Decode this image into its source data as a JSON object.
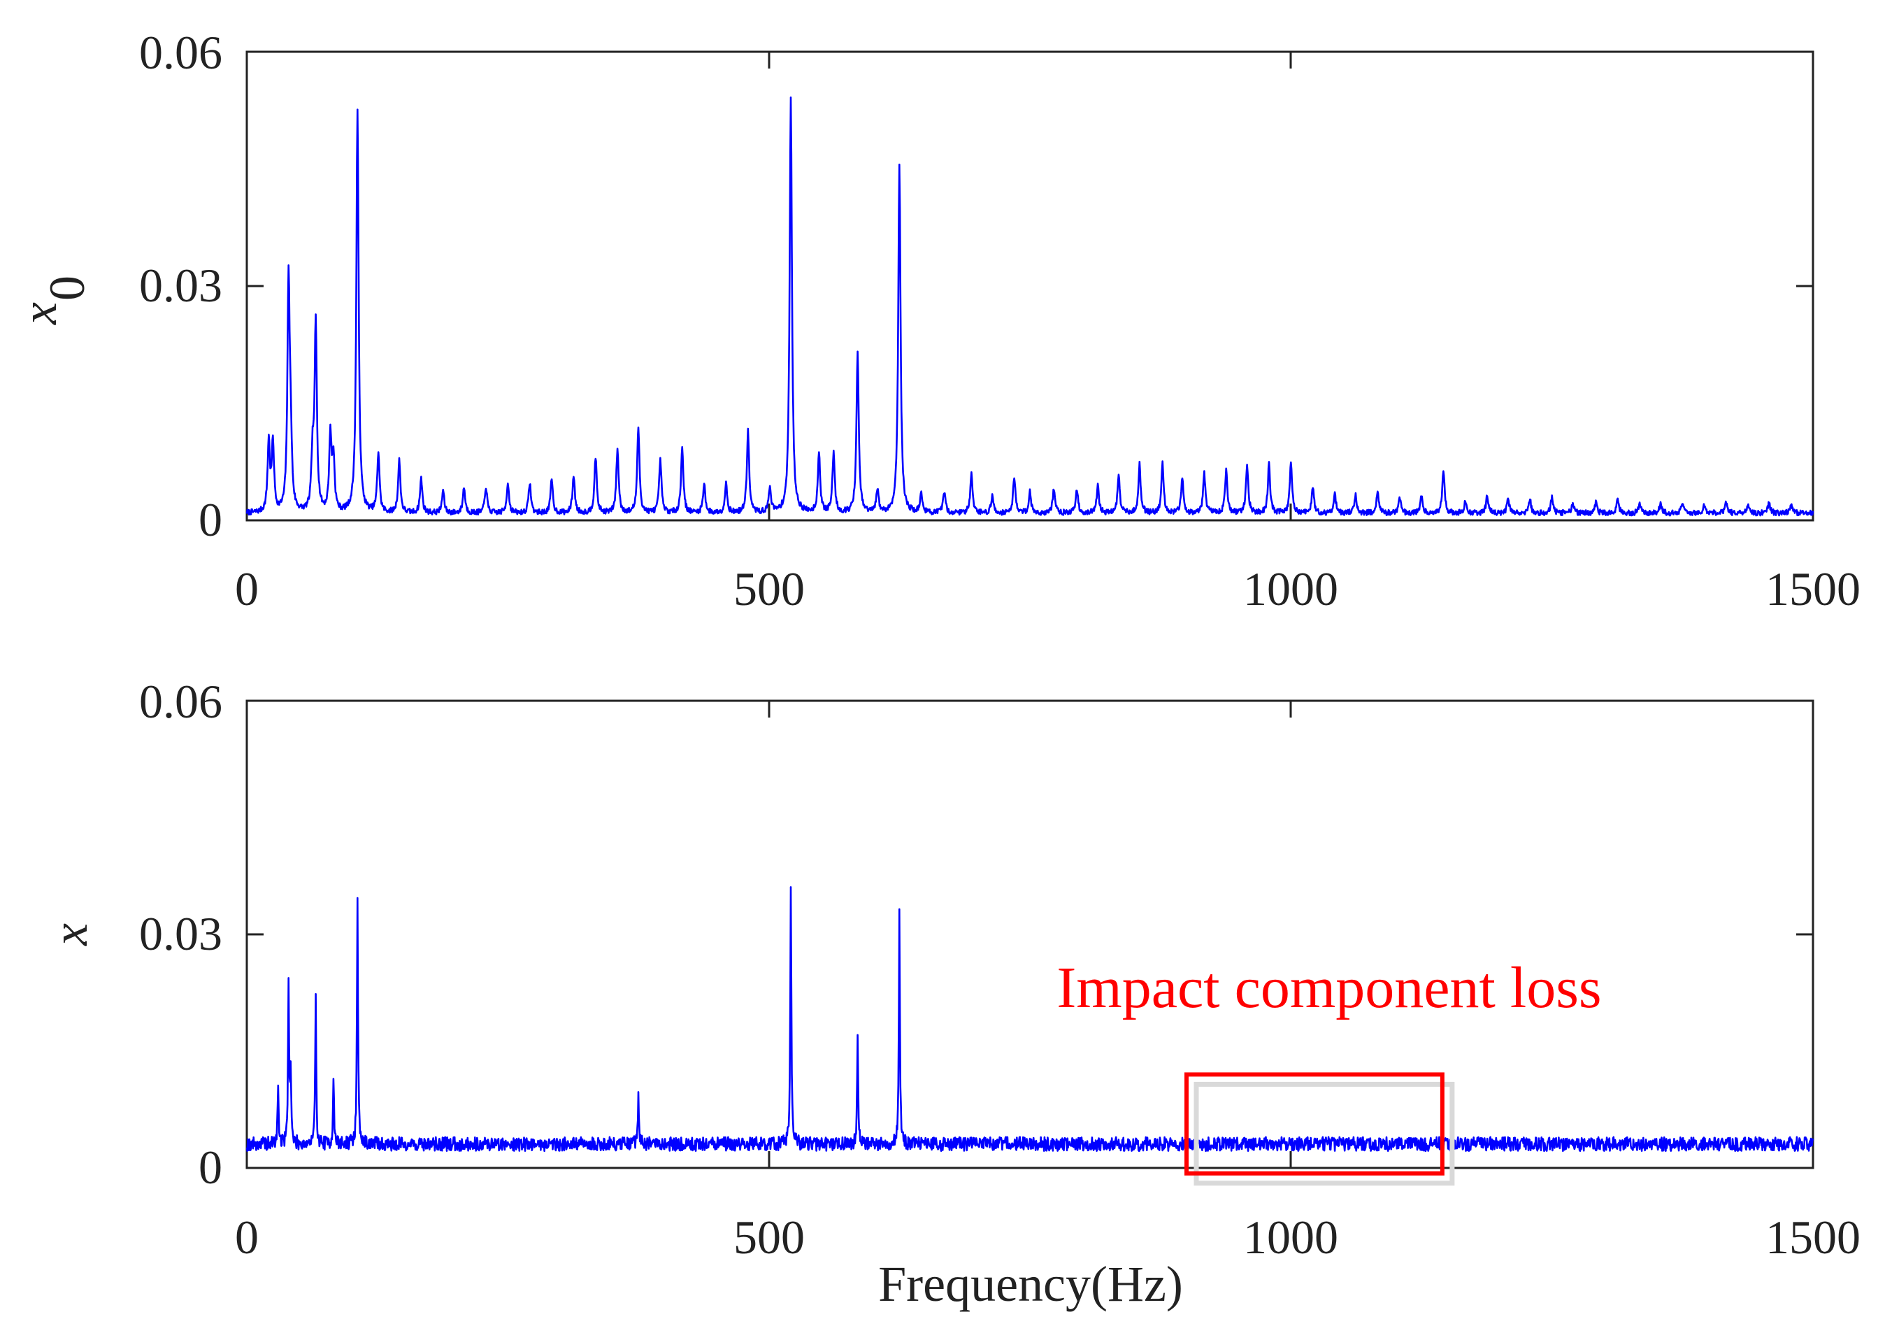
{
  "chart_data": [
    {
      "type": "line",
      "ylabel": "x",
      "ylabel_subscript": "0",
      "xlabel": "",
      "xlim": [
        0,
        1500
      ],
      "ylim": [
        0,
        0.06
      ],
      "xticks": [
        "0",
        "500",
        "1000",
        "1500"
      ],
      "yticks": [
        "0",
        "0.03",
        "0.06"
      ],
      "line_color": "#0000ff",
      "noise_floor": 0.0008,
      "noise_amplitude": 0.0007,
      "peaks": [
        {
          "x": 21,
          "y": 0.009
        },
        {
          "x": 25,
          "y": 0.0088
        },
        {
          "x": 40,
          "y": 0.0295
        },
        {
          "x": 42,
          "y": 0.0075
        },
        {
          "x": 63,
          "y": 0.0068
        },
        {
          "x": 66,
          "y": 0.024
        },
        {
          "x": 80,
          "y": 0.0098
        },
        {
          "x": 83,
          "y": 0.0068
        },
        {
          "x": 106,
          "y": 0.0515
        },
        {
          "x": 126,
          "y": 0.0077
        },
        {
          "x": 146,
          "y": 0.0067
        },
        {
          "x": 167,
          "y": 0.0044
        },
        {
          "x": 188,
          "y": 0.0029
        },
        {
          "x": 208,
          "y": 0.0033
        },
        {
          "x": 229,
          "y": 0.0034
        },
        {
          "x": 250,
          "y": 0.0039
        },
        {
          "x": 271,
          "y": 0.0039
        },
        {
          "x": 292,
          "y": 0.0043
        },
        {
          "x": 313,
          "y": 0.0048
        },
        {
          "x": 334,
          "y": 0.0072
        },
        {
          "x": 355,
          "y": 0.0082
        },
        {
          "x": 375,
          "y": 0.011
        },
        {
          "x": 396,
          "y": 0.0068
        },
        {
          "x": 417,
          "y": 0.0085
        },
        {
          "x": 438,
          "y": 0.0038
        },
        {
          "x": 459,
          "y": 0.0038
        },
        {
          "x": 480,
          "y": 0.0105
        },
        {
          "x": 501,
          "y": 0.0033
        },
        {
          "x": 521,
          "y": 0.053
        },
        {
          "x": 548,
          "y": 0.0078
        },
        {
          "x": 562,
          "y": 0.0078
        },
        {
          "x": 585,
          "y": 0.0205
        },
        {
          "x": 604,
          "y": 0.003
        },
        {
          "x": 625,
          "y": 0.0445
        },
        {
          "x": 646,
          "y": 0.0025
        },
        {
          "x": 668,
          "y": 0.0028
        },
        {
          "x": 694,
          "y": 0.0052
        },
        {
          "x": 714,
          "y": 0.0022
        },
        {
          "x": 735,
          "y": 0.0047
        },
        {
          "x": 750,
          "y": 0.0027
        },
        {
          "x": 773,
          "y": 0.0032
        },
        {
          "x": 795,
          "y": 0.0031
        },
        {
          "x": 815,
          "y": 0.0035
        },
        {
          "x": 835,
          "y": 0.0048
        },
        {
          "x": 855,
          "y": 0.0062
        },
        {
          "x": 877,
          "y": 0.0064
        },
        {
          "x": 896,
          "y": 0.0045
        },
        {
          "x": 917,
          "y": 0.0051
        },
        {
          "x": 938,
          "y": 0.0055
        },
        {
          "x": 958,
          "y": 0.0062
        },
        {
          "x": 979,
          "y": 0.0062
        },
        {
          "x": 1000,
          "y": 0.0065
        },
        {
          "x": 1021,
          "y": 0.0032
        },
        {
          "x": 1042,
          "y": 0.0025
        },
        {
          "x": 1062,
          "y": 0.0022
        },
        {
          "x": 1083,
          "y": 0.0025
        },
        {
          "x": 1104,
          "y": 0.0022
        },
        {
          "x": 1125,
          "y": 0.0022
        },
        {
          "x": 1146,
          "y": 0.0056
        },
        {
          "x": 1167,
          "y": 0.0015
        },
        {
          "x": 1188,
          "y": 0.0022
        },
        {
          "x": 1208,
          "y": 0.0018
        },
        {
          "x": 1229,
          "y": 0.0016
        },
        {
          "x": 1250,
          "y": 0.0021
        },
        {
          "x": 1270,
          "y": 0.0014
        },
        {
          "x": 1292,
          "y": 0.0013
        },
        {
          "x": 1313,
          "y": 0.0019
        },
        {
          "x": 1334,
          "y": 0.0012
        },
        {
          "x": 1354,
          "y": 0.0013
        },
        {
          "x": 1375,
          "y": 0.0012
        },
        {
          "x": 1396,
          "y": 0.0011
        },
        {
          "x": 1417,
          "y": 0.0014
        },
        {
          "x": 1438,
          "y": 0.0012
        },
        {
          "x": 1458,
          "y": 0.0013
        },
        {
          "x": 1479,
          "y": 0.0011
        }
      ]
    },
    {
      "type": "line",
      "ylabel": "x",
      "xlabel": "Frequency(Hz)",
      "xlim": [
        0,
        1500
      ],
      "ylim": [
        0,
        0.06
      ],
      "xticks": [
        "0",
        "500",
        "1000",
        "1500"
      ],
      "yticks": [
        "0",
        "0.03",
        "0.06"
      ],
      "line_color": "#0000ff",
      "noise_floor": 0.0028,
      "noise_amplitude": 0.0018,
      "peaks": [
        {
          "x": 30,
          "y": 0.0075
        },
        {
          "x": 40,
          "y": 0.0208
        },
        {
          "x": 42,
          "y": 0.009
        },
        {
          "x": 66,
          "y": 0.0185
        },
        {
          "x": 83,
          "y": 0.0085
        },
        {
          "x": 106,
          "y": 0.0322
        },
        {
          "x": 375,
          "y": 0.0068
        },
        {
          "x": 521,
          "y": 0.0331
        },
        {
          "x": 585,
          "y": 0.014
        },
        {
          "x": 625,
          "y": 0.0295
        }
      ],
      "annotation": {
        "text": "Impact component loss",
        "color": "#ff0000",
        "box_x_range": [
          900,
          1145
        ],
        "box_y_range": [
          -0.0007,
          0.012
        ]
      }
    }
  ]
}
